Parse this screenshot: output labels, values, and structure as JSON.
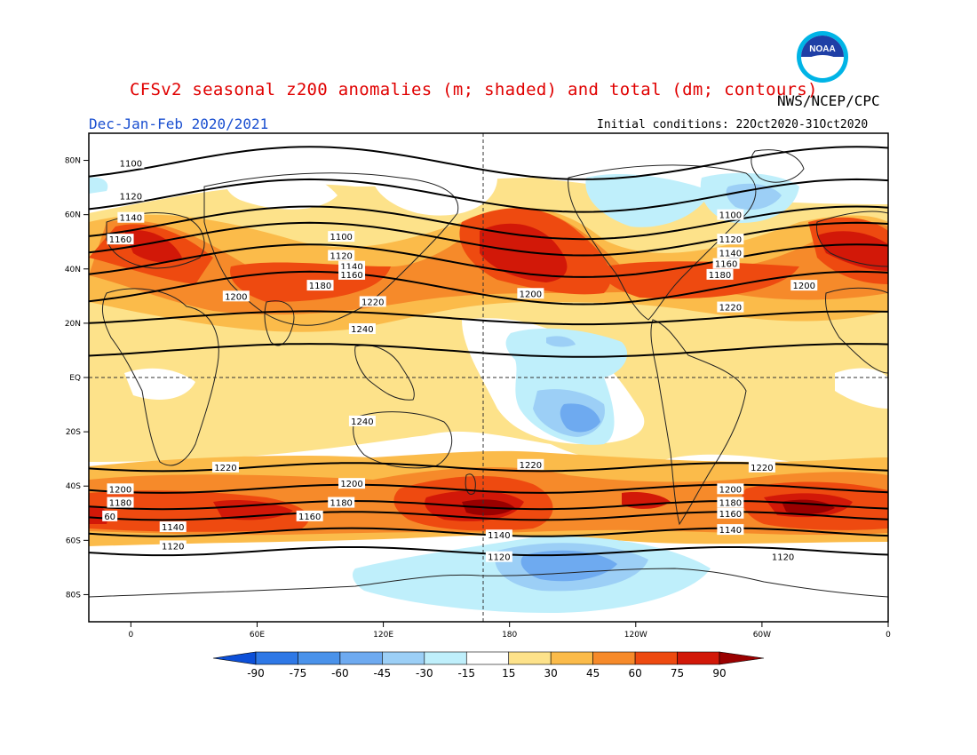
{
  "title": "CFSv2 seasonal z200 anomalies (m; shaded) and total (dm; contours)",
  "agency": "NWS/NCEP/CPC",
  "season": "Dec-Jan-Feb 2020/2021",
  "initial_conditions": "Initial conditions: 22Oct2020-31Oct2020",
  "logo_text": "NOAA",
  "lat_labels": [
    "80N",
    "60N",
    "40N",
    "20N",
    "EQ",
    "20S",
    "40S",
    "60S",
    "80S"
  ],
  "lon_labels": [
    "0",
    "60E",
    "120E",
    "180",
    "120W",
    "60W",
    "0"
  ],
  "colorbar": {
    "ticks": [
      "-90",
      "-75",
      "-60",
      "-45",
      "-30",
      "-15",
      "15",
      "30",
      "45",
      "60",
      "75",
      "90"
    ],
    "colors": [
      "#0c4fd8",
      "#2e78e6",
      "#4a92ea",
      "#6eaaf0",
      "#9ccff6",
      "#bfeffb",
      "#ffffff",
      "#fde28a",
      "#fbbb4a",
      "#f68a2a",
      "#ee4a10",
      "#d21808",
      "#9a0000"
    ]
  },
  "contours": [
    {
      "label": "1100",
      "lat": 79
    },
    {
      "label": "1120",
      "lat": 67
    },
    {
      "label": "1140",
      "lat": 57
    },
    {
      "label": "1160",
      "lat": 51
    },
    {
      "label": "1180",
      "lat": 43
    },
    {
      "label": "1200",
      "lat": 33
    },
    {
      "label": "1220",
      "lat": 22
    },
    {
      "label": "1240",
      "lat": 10
    },
    {
      "label": "1220",
      "lat": -33
    },
    {
      "label": "1200",
      "lat": -41
    },
    {
      "label": "1180",
      "lat": -47
    },
    {
      "label": "1160",
      "lat": -51
    },
    {
      "label": "1140",
      "lat": -57
    },
    {
      "label": "1120",
      "lat": -64
    }
  ],
  "contour_labels": [
    {
      "text": "1100",
      "lon": 0,
      "lat": 79
    },
    {
      "text": "1120",
      "lon": 0,
      "lat": 67
    },
    {
      "text": "1140",
      "lon": 0,
      "lat": 59
    },
    {
      "text": "1160",
      "lon": -5,
      "lat": 51
    },
    {
      "text": "1100",
      "lon": 100,
      "lat": 52
    },
    {
      "text": "1120",
      "lon": 100,
      "lat": 45
    },
    {
      "text": "1140",
      "lon": 105,
      "lat": 41
    },
    {
      "text": "1160",
      "lon": 105,
      "lat": 38
    },
    {
      "text": "1180",
      "lon": 90,
      "lat": 34
    },
    {
      "text": "1200",
      "lon": 50,
      "lat": 30
    },
    {
      "text": "1220",
      "lon": 115,
      "lat": 28
    },
    {
      "text": "1200",
      "lon": 190,
      "lat": 31
    },
    {
      "text": "1240",
      "lon": 110,
      "lat": 18
    },
    {
      "text": "1240",
      "lon": 110,
      "lat": -16
    },
    {
      "text": "1100",
      "lon": 285,
      "lat": 60
    },
    {
      "text": "1120",
      "lon": 285,
      "lat": 51
    },
    {
      "text": "1140",
      "lon": 285,
      "lat": 46
    },
    {
      "text": "1160",
      "lon": 283,
      "lat": 42
    },
    {
      "text": "1180",
      "lon": 280,
      "lat": 38
    },
    {
      "text": "1200",
      "lon": 320,
      "lat": 34
    },
    {
      "text": "1220",
      "lon": 285,
      "lat": 26
    },
    {
      "text": "1220",
      "lon": 45,
      "lat": -33
    },
    {
      "text": "1200",
      "lon": 105,
      "lat": -39
    },
    {
      "text": "1220",
      "lon": 190,
      "lat": -32
    },
    {
      "text": "1220",
      "lon": 300,
      "lat": -33
    },
    {
      "text": "1200",
      "lon": -5,
      "lat": -41
    },
    {
      "text": "1180",
      "lon": -5,
      "lat": -46
    },
    {
      "text": "60",
      "lon": -10,
      "lat": -51
    },
    {
      "text": "1180",
      "lon": 100,
      "lat": -46
    },
    {
      "text": "1160",
      "lon": 85,
      "lat": -51
    },
    {
      "text": "1140",
      "lon": 20,
      "lat": -55
    },
    {
      "text": "1120",
      "lon": 20,
      "lat": -62
    },
    {
      "text": "1140",
      "lon": 175,
      "lat": -58
    },
    {
      "text": "1120",
      "lon": 175,
      "lat": -66
    },
    {
      "text": "1200",
      "lon": 285,
      "lat": -41
    },
    {
      "text": "1180",
      "lon": 285,
      "lat": -46
    },
    {
      "text": "1160",
      "lon": 285,
      "lat": -50
    },
    {
      "text": "1140",
      "lon": 285,
      "lat": -56
    },
    {
      "text": "1120",
      "lon": 310,
      "lat": -66
    }
  ]
}
